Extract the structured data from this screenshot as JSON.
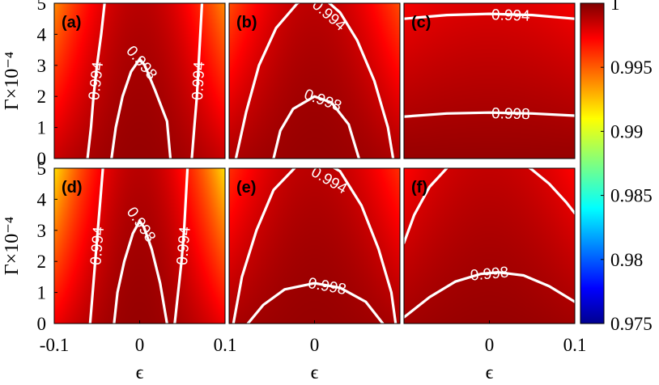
{
  "chart_data": [
    {
      "type": "heatmap",
      "panel": "(a)",
      "xlabel": "",
      "ylabel": "Γ×10⁻⁴",
      "xlim": [
        -0.1,
        0.1
      ],
      "ylim": [
        0,
        5
      ],
      "xticks": [],
      "yticks": [
        "0",
        "1",
        "2",
        "3",
        "4",
        "5"
      ],
      "field": {
        "peak": 0.9995,
        "wx": 0.0011,
        "wy": 0.0003,
        "ax": 0.0038,
        "ay": 0.00045
      },
      "contours": [
        {
          "level": "0.994",
          "label": "0.994",
          "points": [
            [
              -0.061,
              0
            ],
            [
              -0.057,
              1
            ],
            [
              -0.054,
              2
            ],
            [
              -0.05,
              3
            ],
            [
              -0.045,
              4
            ],
            [
              -0.041,
              5
            ]
          ]
        },
        {
          "level": "0.994",
          "label": "0.994",
          "points": [
            [
              0.061,
              0
            ],
            [
              0.064,
              1
            ],
            [
              0.067,
              2
            ],
            [
              0.069,
              3
            ],
            [
              0.071,
              4
            ],
            [
              0.073,
              5
            ]
          ]
        },
        {
          "level": "0.998",
          "label": "0.998",
          "points": [
            [
              -0.033,
              0
            ],
            [
              -0.028,
              1
            ],
            [
              -0.02,
              2
            ],
            [
              -0.01,
              2.8
            ],
            [
              0,
              3.2
            ],
            [
              0.006,
              3.0
            ],
            [
              0.018,
              2.2
            ],
            [
              0.032,
              1.2
            ],
            [
              0.036,
              0
            ]
          ]
        }
      ]
    },
    {
      "type": "heatmap",
      "panel": "(b)",
      "xlabel": "",
      "ylabel": "",
      "xlim": [
        -0.1,
        0.1
      ],
      "ylim": [
        0,
        5
      ],
      "xticks": [],
      "yticks": [],
      "field": {
        "peak": 0.9995,
        "wx": 0.00052,
        "wy": 0.0003,
        "ax": 0.0028,
        "ay": 0.00053
      },
      "contours": [
        {
          "level": "0.994",
          "label": "0.994",
          "points": [
            [
              -0.092,
              0
            ],
            [
              -0.08,
              1.5
            ],
            [
              -0.065,
              3
            ],
            [
              -0.045,
              4.2
            ],
            [
              -0.02,
              5
            ],
            [
              0.005,
              5.3
            ],
            [
              0.03,
              4.7
            ],
            [
              0.05,
              3.8
            ],
            [
              0.07,
              2.5
            ],
            [
              0.086,
              1
            ],
            [
              0.092,
              0
            ]
          ]
        },
        {
          "level": "0.998",
          "label": "0.998",
          "points": [
            [
              -0.048,
              0
            ],
            [
              -0.04,
              0.9
            ],
            [
              -0.025,
              1.6
            ],
            [
              0,
              2.0
            ],
            [
              0.02,
              1.8
            ],
            [
              0.04,
              1.1
            ],
            [
              0.052,
              0
            ]
          ]
        }
      ]
    },
    {
      "type": "heatmap",
      "panel": "(c)",
      "xlabel": "",
      "ylabel": "",
      "xlim": [
        -0.1,
        0.1
      ],
      "ylim": [
        0,
        5
      ],
      "xticks": [],
      "yticks": [],
      "field": {
        "peak": 0.9995,
        "wx": 0.0,
        "wy": 0.0012,
        "ax": 0.0006,
        "ay": 0.0003
      },
      "contours": [
        {
          "level": "0.994",
          "label": "0.994",
          "points": [
            [
              -0.1,
              4.5
            ],
            [
              -0.05,
              4.62
            ],
            [
              0,
              4.66
            ],
            [
              0.05,
              4.62
            ],
            [
              0.1,
              4.5
            ]
          ]
        },
        {
          "level": "0.998",
          "label": "0.998",
          "points": [
            [
              -0.1,
              1.35
            ],
            [
              -0.05,
              1.45
            ],
            [
              0,
              1.48
            ],
            [
              0.05,
              1.45
            ],
            [
              0.1,
              1.38
            ]
          ]
        }
      ]
    },
    {
      "type": "heatmap",
      "panel": "(d)",
      "xlabel": "ϵ",
      "ylabel": "Γ×10⁻⁴",
      "xlim": [
        -0.1,
        0.1
      ],
      "ylim": [
        0,
        5
      ],
      "xticks": [
        "-0.1",
        "0",
        "0.1"
      ],
      "yticks": [
        "0",
        "1",
        "2",
        "3",
        "4",
        "5"
      ],
      "field": {
        "peak": 0.9995,
        "wx": 0.002,
        "wy": 0.0003,
        "ax": 0.005,
        "ay": 0.00045
      },
      "contours": [
        {
          "level": "0.994",
          "label": "0.994",
          "points": [
            [
              -0.058,
              0
            ],
            [
              -0.055,
              1
            ],
            [
              -0.052,
              2
            ],
            [
              -0.049,
              3
            ],
            [
              -0.046,
              4
            ],
            [
              -0.043,
              5
            ]
          ]
        },
        {
          "level": "0.994",
          "label": "0.994",
          "points": [
            [
              0.041,
              0
            ],
            [
              0.045,
              1
            ],
            [
              0.049,
              2
            ],
            [
              0.052,
              3
            ],
            [
              0.054,
              4
            ],
            [
              0.056,
              5
            ]
          ]
        },
        {
          "level": "0.998",
          "label": "0.998",
          "points": [
            [
              -0.03,
              0
            ],
            [
              -0.026,
              1
            ],
            [
              -0.018,
              2
            ],
            [
              -0.008,
              2.9
            ],
            [
              0,
              3.3
            ],
            [
              0.005,
              3.1
            ],
            [
              0.014,
              2.4
            ],
            [
              0.024,
              1.3
            ],
            [
              0.032,
              0
            ]
          ]
        }
      ]
    },
    {
      "type": "heatmap",
      "panel": "(e)",
      "xlabel": "ϵ",
      "ylabel": "",
      "xlim": [
        -0.1,
        0.1
      ],
      "ylim": [
        0,
        5
      ],
      "xticks": [
        "0"
      ],
      "yticks": [],
      "field": {
        "peak": 0.9995,
        "wx": 0.00042,
        "wy": 0.00028,
        "ax": 0.0022,
        "ay": 0.0005
      },
      "contours": [
        {
          "level": "0.994",
          "label": "0.994",
          "points": [
            [
              -0.095,
              0
            ],
            [
              -0.085,
              1.5
            ],
            [
              -0.068,
              3
            ],
            [
              -0.048,
              4.3
            ],
            [
              -0.02,
              5.1
            ],
            [
              0.005,
              5.3
            ],
            [
              0.03,
              4.9
            ],
            [
              0.055,
              3.8
            ],
            [
              0.075,
              2.4
            ],
            [
              0.09,
              1
            ],
            [
              0.095,
              0
            ]
          ]
        },
        {
          "level": "0.998",
          "label": "0.998",
          "points": [
            [
              -0.078,
              0
            ],
            [
              -0.06,
              0.6
            ],
            [
              -0.035,
              1.1
            ],
            [
              0,
              1.3
            ],
            [
              0.03,
              1.15
            ],
            [
              0.06,
              0.7
            ],
            [
              0.08,
              0
            ]
          ]
        }
      ]
    },
    {
      "type": "heatmap",
      "panel": "(f)",
      "xlabel": "ϵ",
      "ylabel": "",
      "xlim": [
        -0.1,
        0.1
      ],
      "ylim": [
        0,
        5
      ],
      "xticks": [
        "0",
        "0.1"
      ],
      "yticks": [],
      "field": {
        "peak": 0.9995,
        "wx": 0.00025,
        "wy": 0.0006,
        "ax": 0.0011,
        "ay": 0.00035
      },
      "contours": [
        {
          "level": "0.994",
          "label": "",
          "points": [
            [
              -0.1,
              2.6
            ],
            [
              -0.088,
              3.5
            ],
            [
              -0.07,
              4.4
            ],
            [
              -0.05,
              5.0
            ],
            [
              -0.04,
              5.25
            ]
          ]
        },
        {
          "level": "0.994",
          "label": "",
          "points": [
            [
              0.035,
              5.25
            ],
            [
              0.05,
              4.95
            ],
            [
              0.07,
              4.5
            ],
            [
              0.09,
              3.9
            ],
            [
              0.1,
              3.55
            ]
          ]
        },
        {
          "level": "0.998",
          "label": "0.998",
          "points": [
            [
              -0.1,
              0.2
            ],
            [
              -0.07,
              0.85
            ],
            [
              -0.04,
              1.35
            ],
            [
              -0.01,
              1.6
            ],
            [
              0.01,
              1.65
            ],
            [
              0.04,
              1.55
            ],
            [
              0.07,
              1.2
            ],
            [
              0.1,
              0.7
            ]
          ]
        }
      ]
    }
  ],
  "colorbar": {
    "min": 0.975,
    "max": 1,
    "ticks": [
      "1",
      "0.995",
      "0.99",
      "0.985",
      "0.98",
      "0.975"
    ],
    "colormap": "jet"
  },
  "colors": {
    "contour": "#ffffff",
    "axis": "#000000"
  }
}
